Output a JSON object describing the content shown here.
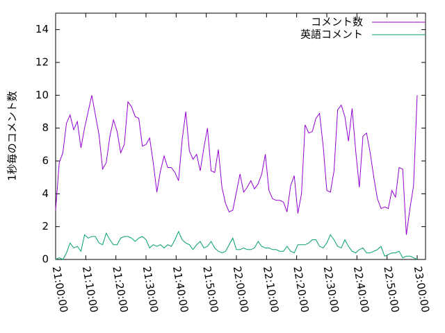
{
  "chart_data": {
    "type": "line",
    "y_label": "1秒毎のコメント数",
    "x": [
      "21:00:00",
      "21:01:12",
      "21:02:24",
      "21:03:36",
      "21:04:48",
      "21:06:00",
      "21:07:12",
      "21:08:24",
      "21:09:36",
      "21:10:48",
      "21:12:00",
      "21:13:12",
      "21:14:24",
      "21:15:36",
      "21:16:48",
      "21:18:00",
      "21:19:12",
      "21:20:24",
      "21:21:36",
      "21:22:48",
      "21:24:00",
      "21:25:12",
      "21:26:24",
      "21:27:36",
      "21:28:48",
      "21:30:00",
      "21:31:12",
      "21:32:24",
      "21:33:36",
      "21:34:48",
      "21:36:00",
      "21:37:12",
      "21:38:24",
      "21:39:36",
      "21:40:48",
      "21:42:00",
      "21:43:12",
      "21:44:24",
      "21:45:36",
      "21:46:48",
      "21:48:00",
      "21:49:12",
      "21:50:24",
      "21:51:36",
      "21:52:48",
      "21:54:00",
      "21:55:12",
      "21:56:24",
      "21:57:36",
      "21:58:48",
      "22:00:00",
      "22:01:12",
      "22:02:24",
      "22:03:36",
      "22:04:48",
      "22:06:00",
      "22:07:12",
      "22:08:24",
      "22:09:36",
      "22:10:48",
      "22:12:00",
      "22:13:12",
      "22:14:24",
      "22:15:36",
      "22:16:48",
      "22:18:00",
      "22:19:12",
      "22:20:24",
      "22:21:36",
      "22:22:48",
      "22:24:00",
      "22:25:12",
      "22:26:24",
      "22:27:36",
      "22:28:48",
      "22:30:00",
      "22:31:12",
      "22:32:24",
      "22:33:36",
      "22:34:48",
      "22:36:00",
      "22:37:12",
      "22:38:24",
      "22:39:36",
      "22:40:48",
      "22:42:00",
      "22:43:12",
      "22:44:24",
      "22:45:36",
      "22:46:48",
      "22:48:00",
      "22:49:12",
      "22:50:24",
      "22:51:36",
      "22:52:48",
      "22:54:00",
      "22:55:12",
      "22:56:24",
      "22:57:36",
      "22:58:48",
      "23:00:00"
    ],
    "series": [
      {
        "name": "コメント数",
        "color": "#9400d3",
        "values": [
          3.0,
          5.9,
          6.5,
          8.3,
          8.8,
          7.9,
          8.4,
          6.8,
          8.0,
          9.0,
          10.0,
          8.8,
          7.6,
          5.5,
          5.9,
          7.5,
          8.5,
          7.8,
          6.5,
          7.0,
          9.6,
          9.3,
          8.7,
          8.6,
          6.9,
          7.0,
          7.4,
          5.9,
          4.1,
          5.4,
          6.3,
          5.6,
          5.6,
          5.3,
          4.8,
          7.3,
          9.0,
          6.6,
          6.1,
          6.4,
          5.4,
          6.8,
          8.0,
          5.4,
          5.3,
          6.7,
          4.4,
          3.4,
          2.9,
          3.0,
          4.1,
          5.2,
          4.1,
          4.4,
          4.8,
          4.3,
          4.6,
          5.2,
          6.4,
          4.2,
          3.7,
          3.6,
          3.6,
          3.5,
          2.9,
          4.5,
          5.1,
          2.8,
          4.0,
          8.2,
          7.7,
          7.8,
          8.6,
          8.9,
          6.9,
          4.2,
          4.1,
          5.4,
          9.1,
          9.4,
          8.7,
          7.2,
          9.2,
          6.6,
          4.4,
          7.5,
          7.7,
          6.5,
          5.0,
          3.7,
          3.1,
          3.2,
          3.1,
          4.2,
          3.8,
          5.6,
          5.5,
          1.5,
          3.1,
          4.5,
          10.0
        ]
      },
      {
        "name": "英語コメント",
        "color": "#009e73",
        "values": [
          0,
          0.1,
          0.0,
          0.4,
          1.0,
          0.7,
          0.8,
          0.5,
          1.5,
          1.3,
          1.4,
          1.4,
          1.0,
          0.9,
          1.6,
          1.2,
          0.9,
          0.9,
          1.3,
          1.4,
          1.4,
          1.3,
          1.1,
          1.3,
          1.4,
          1.2,
          0.7,
          0.9,
          0.8,
          0.9,
          0.7,
          0.9,
          0.8,
          1.2,
          1.7,
          1.2,
          1.0,
          0.9,
          0.6,
          0.9,
          1.1,
          0.7,
          0.8,
          1.1,
          0.7,
          0.5,
          0.4,
          0.5,
          0.9,
          1.3,
          0.6,
          0.6,
          0.7,
          0.6,
          0.6,
          0.7,
          1.1,
          0.8,
          0.7,
          0.7,
          0.6,
          0.6,
          0.5,
          0.5,
          0.8,
          0.5,
          0.4,
          0.9,
          0.9,
          0.9,
          1.0,
          1.2,
          1.2,
          0.8,
          0.7,
          1.0,
          1.5,
          1.2,
          0.8,
          0.7,
          1.2,
          0.8,
          0.5,
          0.4,
          0.6,
          0.7,
          0.4,
          0.4,
          0.5,
          0.6,
          0.8,
          0.2,
          0.3,
          0.4,
          0.4,
          0.5,
          0.1,
          0.2,
          0.2,
          0.1,
          0.0
        ]
      }
    ],
    "xlim": [
      "21:00:00",
      "23:00:00"
    ],
    "xticks": [
      "21:00:00",
      "21:10:00",
      "21:20:00",
      "21:30:00",
      "21:40:00",
      "21:50:00",
      "22:00:00",
      "22:10:00",
      "22:20:00",
      "22:30:00",
      "22:40:00",
      "22:50:00",
      "23:00:00"
    ],
    "ylim": [
      0,
      15
    ],
    "yticks": [
      0,
      2,
      4,
      6,
      8,
      10,
      12,
      14
    ],
    "grid": false,
    "legend": "top-right"
  }
}
